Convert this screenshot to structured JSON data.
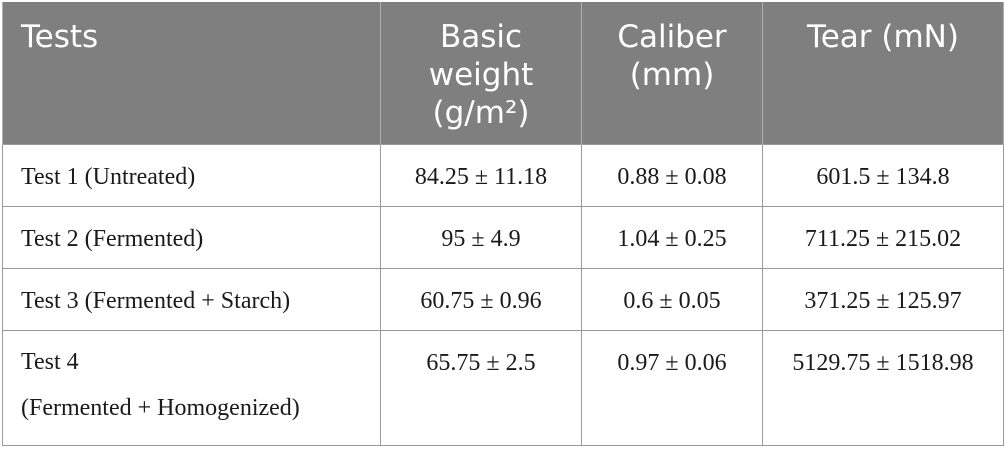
{
  "table": {
    "headers": {
      "tests": "Tests",
      "basic_weight_line1": "Basic",
      "basic_weight_line2": "weight",
      "basic_weight_line3": "(g/m²)",
      "caliber_line1": "Caliber",
      "caliber_line2": "(mm)",
      "tear": "Tear (mN)"
    },
    "rows": [
      {
        "test": "Test 1 (Untreated)",
        "basic_weight": "84.25 ± 11.18",
        "caliber": "0.88 ± 0.08",
        "tear": "601.5 ± 134.8"
      },
      {
        "test": "Test 2 (Fermented)",
        "basic_weight": "95 ± 4.9",
        "caliber": "1.04 ± 0.25",
        "tear": "711.25 ± 215.02"
      },
      {
        "test": "Test 3 (Fermented + Starch)",
        "basic_weight": "60.75 ± 0.96",
        "caliber": "0.6 ± 0.05",
        "tear": "371.25 ± 125.97"
      },
      {
        "test_line1": "Test 4",
        "test_line2": "(Fermented + Homogenized)",
        "basic_weight": "65.75 ± 2.5",
        "caliber": "0.97 ± 0.06",
        "tear": "5129.75 ± 1518.98"
      }
    ]
  }
}
